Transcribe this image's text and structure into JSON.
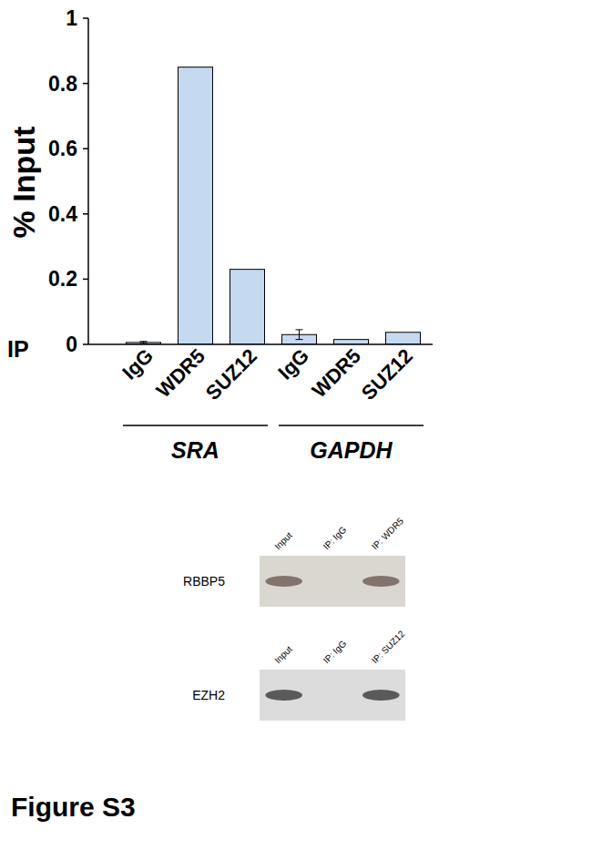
{
  "chart_data": {
    "type": "bar",
    "y_label": "% Input",
    "x_label": "IP",
    "categories": [
      "IgG",
      "WDR5",
      "SUZ12",
      "IgG",
      "WDR5",
      "SUZ12"
    ],
    "values": [
      0.006,
      0.85,
      0.23,
      0.03,
      0.015,
      0.037
    ],
    "errors": [
      0.003,
      null,
      null,
      0.015,
      null,
      null
    ],
    "groups": [
      {
        "label": "SRA",
        "count": 3
      },
      {
        "label": "GAPDH",
        "count": 3
      }
    ],
    "color": "#c5d9f1",
    "ylim": [
      0,
      1
    ],
    "yticks": [
      0,
      0.2,
      0.4,
      0.6,
      0.8,
      1
    ],
    "grid": false
  },
  "blots": [
    {
      "protein": "RBBP5",
      "lanes": [
        "Input",
        "IP: IgG",
        "IP: WDR5"
      ],
      "bands": [
        true,
        false,
        true
      ]
    },
    {
      "protein": "EZH2",
      "lanes": [
        "Input",
        "IP: IgG",
        "IP: SUZ12"
      ],
      "bands": [
        true,
        false,
        true
      ]
    }
  ],
  "figure_label": "Figure S3"
}
